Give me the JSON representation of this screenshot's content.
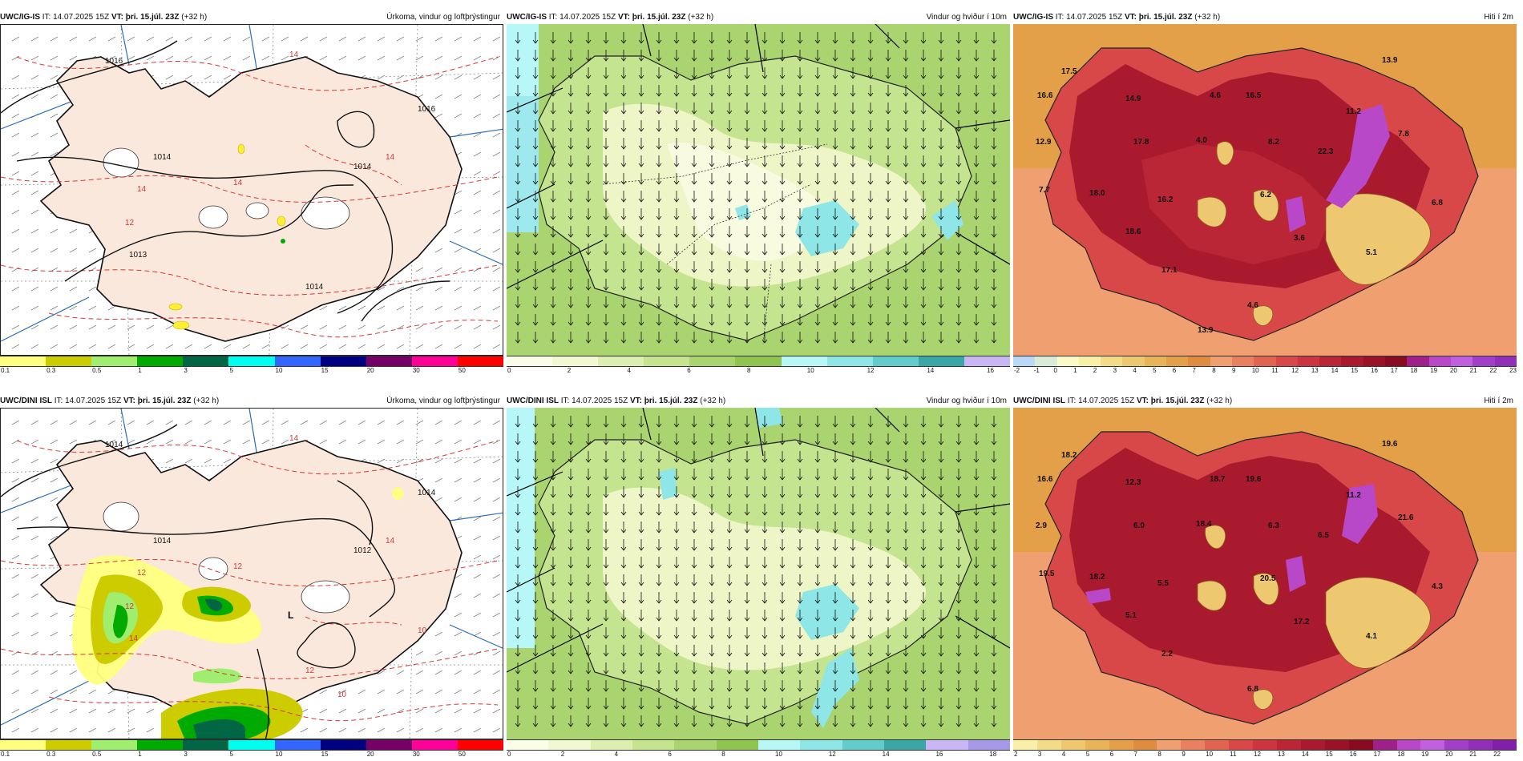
{
  "panels": [
    {
      "source": "UWC/IG-IS",
      "it_prefix": "IT:",
      "it": "14.07.2025 15Z",
      "vt_prefix": "VT:",
      "vt": "þri. 15.júl. 23Z",
      "lead": "(+32 h)",
      "title": "Úrkoma, vindur og loftþrýstingur",
      "labels": [
        "1016",
        "1016",
        "1014",
        "1014",
        "1013",
        "14",
        "14",
        "14",
        "14",
        "12",
        "1014"
      ],
      "colorbar": {
        "colors": [
          "#ffff80",
          "#cccc00",
          "#a0ee70",
          "#00aa00",
          "#006644",
          "#00ffee",
          "#3366ff",
          "#000080",
          "#770066",
          "#ff0099",
          "#ff0000"
        ],
        "ticks": [
          "0.1",
          "0.3",
          "0.5",
          "1",
          "3",
          "5",
          "10",
          "15",
          "20",
          "30",
          "50"
        ]
      }
    },
    {
      "source": "UWC/IG-IS",
      "it_prefix": "IT:",
      "it": "14.07.2025 15Z",
      "vt_prefix": "VT:",
      "vt": "þri. 15.júl. 23Z",
      "lead": "(+32 h)",
      "title": "Vindur og hviður í 10m",
      "labels": [],
      "colorbar": {
        "colors": [
          "#fcfde8",
          "#f2f8d2",
          "#dcefb0",
          "#c4e490",
          "#a9d470",
          "#8fc450",
          "#b7f7f7",
          "#8ee6e6",
          "#62cccc",
          "#3aa6a6",
          "#c8b6f5"
        ],
        "ticks": [
          "0",
          "2",
          "4",
          "6",
          "8",
          "10",
          "12",
          "14",
          "16"
        ]
      }
    },
    {
      "source": "UWC/IG-IS",
      "it_prefix": "IT:",
      "it": "14.07.2025 15Z",
      "vt_prefix": "VT:",
      "vt": "þri. 15.júl. 23Z",
      "lead": "(+32 h)",
      "title": "Hiti í 2m",
      "labels": [
        "17.5",
        "16.6",
        "14.9",
        "4.6",
        "16.5",
        "11.2",
        "13.9",
        "12.9",
        "4.0",
        "8.2",
        "22.3",
        "7.8",
        "17.8",
        "7.7",
        "18.0",
        "16.2",
        "6.2",
        "6.8",
        "18.6",
        "3.6",
        "5.1",
        "17.1",
        "4.6",
        "13.9"
      ],
      "colorbar": {
        "colors": [
          "#b9d9f7",
          "#d8ecd8",
          "#fbfbc8",
          "#f8f0a8",
          "#f2dc88",
          "#edc870",
          "#e8b458",
          "#e3a048",
          "#e08c40",
          "#f0a070",
          "#e98060",
          "#e06450",
          "#d84848",
          "#cc3540",
          "#bb2636",
          "#aa1a2e",
          "#991228",
          "#880b22",
          "#a0208a",
          "#b848c8",
          "#c060e0",
          "#a040c8",
          "#9030b8"
        ],
        "ticks": [
          "-2",
          "-1",
          "0",
          "1",
          "2",
          "3",
          "4",
          "5",
          "6",
          "7",
          "8",
          "9",
          "10",
          "11",
          "12",
          "13",
          "14",
          "15",
          "16",
          "17",
          "18",
          "19",
          "20",
          "21",
          "22",
          "23"
        ]
      }
    },
    {
      "source": "UWC/DINI ISL",
      "it_prefix": "IT:",
      "it": "14.07.2025 15Z",
      "vt_prefix": "VT:",
      "vt": "þri. 15.júl. 23Z",
      "lead": "(+32 h)",
      "title": "Úrkoma, vindur og loftþrýstingur",
      "labels": [
        "1014",
        "1014",
        "1014",
        "1012",
        "14",
        "14",
        "14",
        "12",
        "12",
        "12",
        "12",
        "10",
        "10"
      ],
      "low_label": "L",
      "colorbar": {
        "colors": [
          "#ffff80",
          "#cccc00",
          "#a0ee70",
          "#00aa00",
          "#006644",
          "#00ffee",
          "#3366ff",
          "#000080",
          "#770066",
          "#ff0099",
          "#ff0000"
        ],
        "ticks": [
          "0.1",
          "0.3",
          "0.5",
          "1",
          "3",
          "5",
          "10",
          "15",
          "20",
          "30",
          "50"
        ]
      }
    },
    {
      "source": "UWC/DINI ISL",
      "it_prefix": "IT:",
      "it": "14.07.2025 15Z",
      "vt_prefix": "VT:",
      "vt": "þri. 15.júl. 23Z",
      "lead": "(+32 h)",
      "title": "Vindur og hviður í 10m",
      "labels": [],
      "colorbar": {
        "colors": [
          "#fcfde8",
          "#f2f8d2",
          "#dcefb0",
          "#c4e490",
          "#a9d470",
          "#8fc450",
          "#b7f7f7",
          "#8ee6e6",
          "#62cccc",
          "#3aa6a6",
          "#c8b6f5",
          "#a898e8"
        ],
        "ticks": [
          "0",
          "2",
          "4",
          "6",
          "8",
          "10",
          "12",
          "14",
          "16",
          "18"
        ]
      }
    },
    {
      "source": "UWC/DINI ISL",
      "it_prefix": "IT:",
      "it": "14.07.2025 15Z",
      "vt_prefix": "VT:",
      "vt": "þri. 15.júl. 23Z",
      "lead": "(+32 h)",
      "title": "Hiti í 2m",
      "labels": [
        "18.2",
        "16.6",
        "12.3",
        "18.7",
        "19.6",
        "11.2",
        "19.6",
        "2.9",
        "18.4",
        "6.3",
        "6.5",
        "21.6",
        "6.0",
        "19.5",
        "18.2",
        "5.5",
        "20.5",
        "4.3",
        "5.1",
        "17.2",
        "4.1",
        "2.2",
        "6.8"
      ],
      "colorbar": {
        "colors": [
          "#f8f0a8",
          "#f2dc88",
          "#edc870",
          "#e8b458",
          "#e3a048",
          "#e08c40",
          "#f0a070",
          "#e98060",
          "#e06450",
          "#d84848",
          "#cc3540",
          "#bb2636",
          "#aa1a2e",
          "#991228",
          "#880b22",
          "#a0208a",
          "#b848c8",
          "#c060e0",
          "#a040c8",
          "#9030b8",
          "#8020a8"
        ],
        "ticks": [
          "2",
          "3",
          "4",
          "5",
          "6",
          "7",
          "8",
          "9",
          "10",
          "11",
          "12",
          "13",
          "14",
          "15",
          "16",
          "17",
          "18",
          "19",
          "20",
          "21",
          "22"
        ]
      }
    }
  ]
}
